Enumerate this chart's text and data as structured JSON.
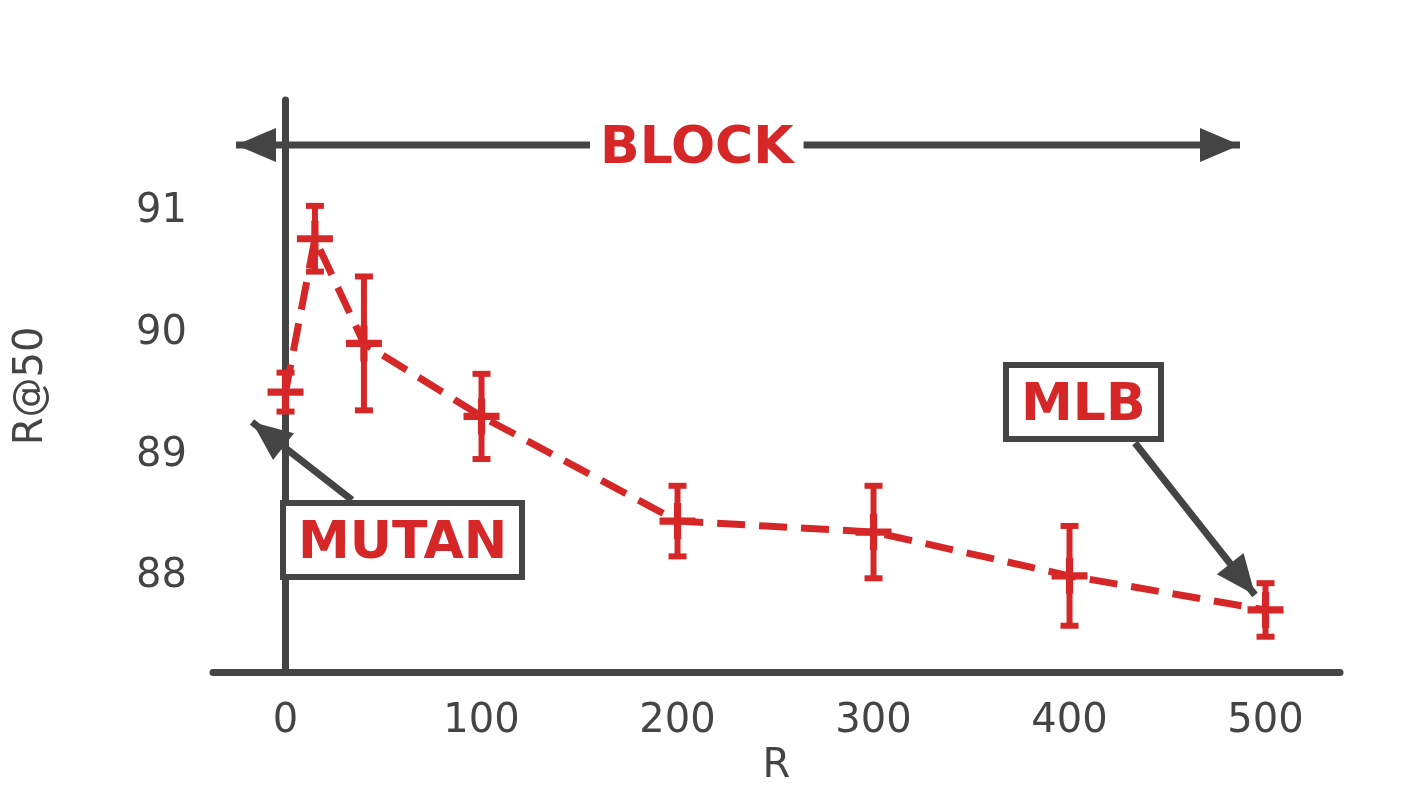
{
  "chart_data": {
    "type": "line",
    "xlabel": "R",
    "ylabel": "R@50",
    "x": [
      0,
      15,
      40,
      100,
      200,
      300,
      400,
      500
    ],
    "series": [
      {
        "color": "#d62728",
        "values": [
          89.49,
          90.75,
          89.89,
          89.29,
          88.43,
          88.34,
          87.98,
          87.7
        ],
        "errors": [
          0.16,
          0.27,
          0.55,
          0.35,
          0.29,
          0.38,
          0.41,
          0.22
        ]
      }
    ],
    "xlim": [
      -37,
      538
    ],
    "xticks": [
      0,
      100,
      200,
      300,
      400,
      500
    ],
    "ylim": [
      87.19,
      91.89
    ],
    "yticks": [
      88,
      89,
      90,
      91
    ],
    "marker": "cross",
    "line_style": "dashed",
    "grid": false,
    "annotations": [
      "BLOCK",
      "MUTAN",
      "MLB"
    ]
  }
}
